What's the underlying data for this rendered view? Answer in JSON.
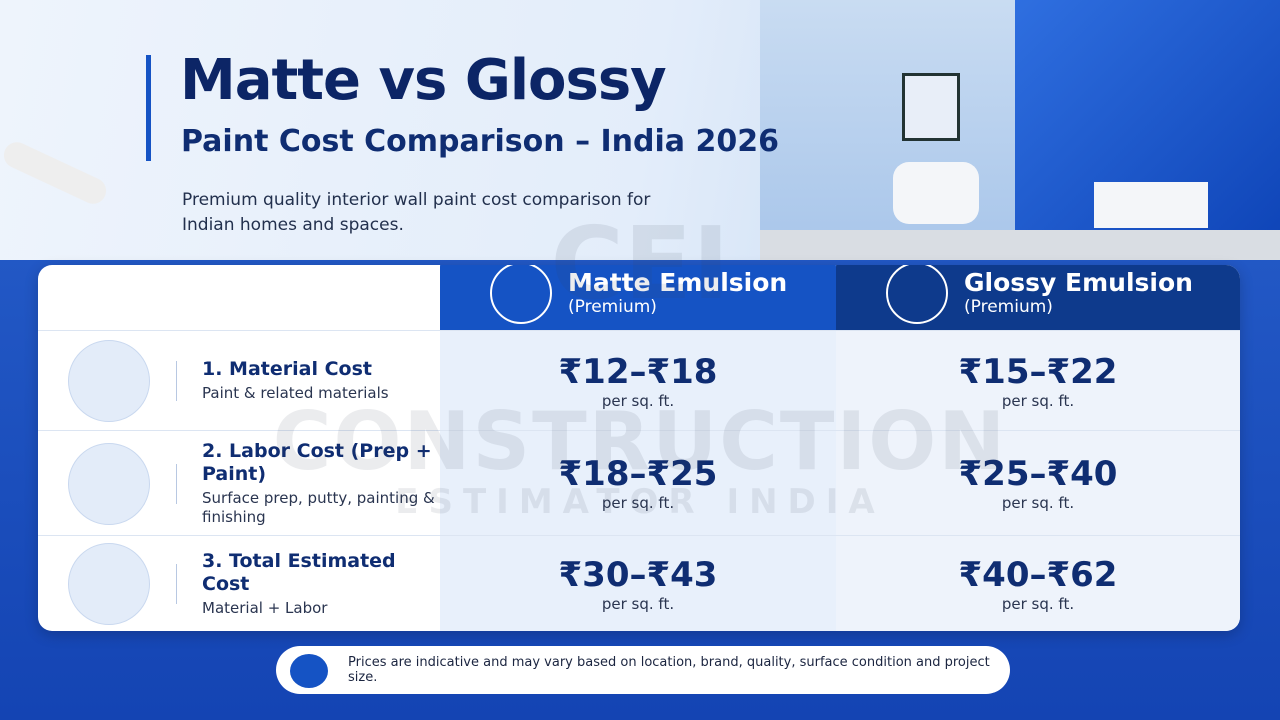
{
  "header": {
    "title": "Matte vs Glossy",
    "subtitle": "Paint Cost Comparison – India 2026",
    "description": "Premium quality interior wall paint cost comparison for Indian homes and spaces."
  },
  "watermark": {
    "logo": "CEI",
    "name": "CONSTRUCTION",
    "tagline": "ESTIMATOR INDIA"
  },
  "table": {
    "columns": [
      {
        "name": "Matte Emulsion",
        "note": "(Premium)"
      },
      {
        "name": "Glossy Emulsion",
        "note": "(Premium)"
      }
    ],
    "rows": [
      {
        "label": "1. Material Cost",
        "sublabel": "Paint & related materials",
        "values": [
          {
            "price": "₹12–₹18",
            "unit": "per sq. ft."
          },
          {
            "price": "₹15–₹22",
            "unit": "per sq. ft."
          }
        ]
      },
      {
        "label": "2. Labor Cost (Prep + Paint)",
        "sublabel": "Surface prep, putty, painting & finishing",
        "values": [
          {
            "price": "₹18–₹25",
            "unit": "per sq. ft."
          },
          {
            "price": "₹25–₹40",
            "unit": "per sq. ft."
          }
        ]
      },
      {
        "label": "3. Total Estimated Cost",
        "sublabel": "Material + Labor",
        "values": [
          {
            "price": "₹30–₹43",
            "unit": "per sq. ft."
          },
          {
            "price": "₹40–₹62",
            "unit": "per sq. ft."
          }
        ]
      }
    ]
  },
  "footer": {
    "note": "Prices are indicative and may vary based on location, brand, quality, surface condition and project size."
  }
}
